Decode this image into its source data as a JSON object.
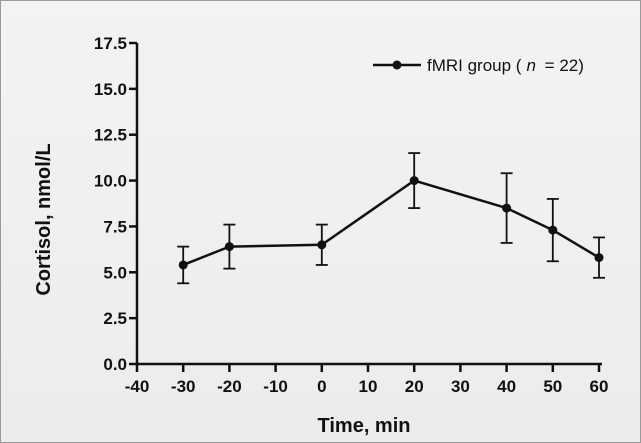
{
  "chart_data": {
    "type": "line",
    "xlabel": "Time, min",
    "ylabel": "Cortisol, nmol/L",
    "xlim": [
      -40,
      60
    ],
    "ylim": [
      0,
      17.5
    ],
    "x_ticks": [
      -40,
      -30,
      -20,
      -10,
      0,
      10,
      20,
      30,
      40,
      50,
      60
    ],
    "y_ticks": [
      "0.0",
      "2.5",
      "5.0",
      "7.5",
      "10.0",
      "12.5",
      "15.0",
      "17.5"
    ],
    "legend_position": "top-right",
    "series": [
      {
        "name_prefix": "fMRI group (",
        "name_n": "n",
        "name_suffix": " = 22)",
        "x": [
          -30,
          -20,
          0,
          20,
          40,
          50,
          60
        ],
        "y": [
          5.4,
          6.4,
          6.5,
          10.0,
          8.5,
          7.3,
          5.8
        ],
        "error": [
          1.0,
          1.2,
          1.1,
          1.5,
          1.9,
          1.7,
          1.1
        ],
        "color": "#111111"
      }
    ],
    "grid": false
  }
}
